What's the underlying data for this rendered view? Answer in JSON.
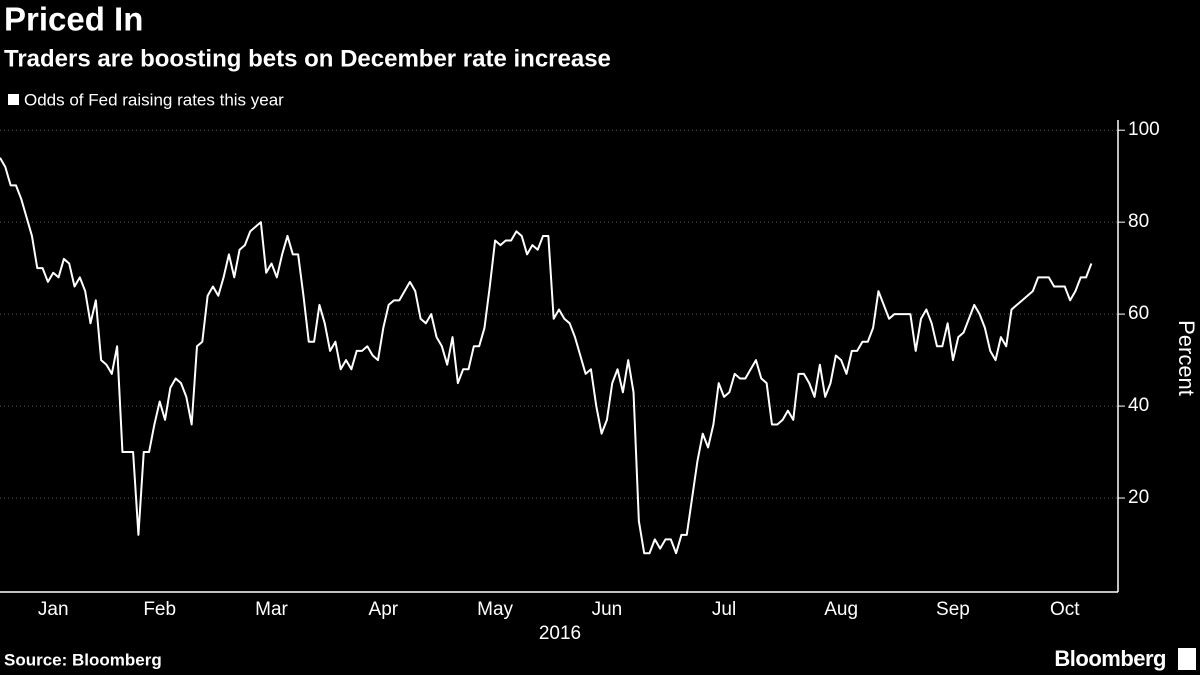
{
  "chart_data": {
    "type": "line",
    "title": "Priced In",
    "subtitle": "Traders are boosting bets on December rate increase",
    "y_label": "Percent",
    "x_label": "2016",
    "source": "Source: Bloomberg",
    "logo": "Bloomberg",
    "ylim": [
      0,
      102
    ],
    "yticks": [
      20,
      40,
      60,
      80,
      100
    ],
    "xlim": [
      0,
      210
    ],
    "xticks": [
      {
        "value": 10,
        "label": "Jan"
      },
      {
        "value": 30,
        "label": "Feb"
      },
      {
        "value": 51,
        "label": "Mar"
      },
      {
        "value": 72,
        "label": "Apr"
      },
      {
        "value": 93,
        "label": "May"
      },
      {
        "value": 114,
        "label": "Jun"
      },
      {
        "value": 136,
        "label": "Jul"
      },
      {
        "value": 158,
        "label": "Aug"
      },
      {
        "value": 179,
        "label": "Sep"
      },
      {
        "value": 200,
        "label": "Oct"
      }
    ],
    "grid": true,
    "series": [
      {
        "name": "Odds of Fed raising rates this year",
        "color": "#ffffff",
        "values": [
          94,
          92,
          88,
          88,
          85,
          81,
          77,
          70,
          70,
          67,
          69,
          68,
          72,
          71,
          66,
          68,
          65,
          58,
          63,
          50,
          49,
          47,
          53,
          30,
          30,
          30,
          12,
          30,
          30,
          36,
          41,
          37,
          44,
          46,
          45,
          42,
          36,
          53,
          54,
          64,
          66,
          64,
          68,
          73,
          68,
          74,
          75,
          78,
          79,
          80,
          69,
          71,
          68,
          73,
          77,
          73,
          73,
          64,
          54,
          54,
          62,
          58,
          52,
          54,
          48,
          50,
          48,
          52,
          52,
          53,
          51,
          50,
          57,
          62,
          63,
          63,
          65,
          67,
          65,
          59,
          58,
          60,
          55,
          53,
          49,
          55,
          45,
          48,
          48,
          53,
          53,
          57,
          66,
          76,
          75,
          76,
          76,
          78,
          77,
          73,
          75,
          74,
          77,
          77,
          59,
          61,
          59,
          58,
          55,
          51,
          47,
          48,
          40,
          34,
          37,
          45,
          48,
          43,
          50,
          43,
          15,
          8,
          8,
          11,
          9,
          11,
          11,
          8,
          12,
          12,
          20,
          28,
          34,
          31,
          36,
          45,
          42,
          43,
          47,
          46,
          46,
          48,
          50,
          46,
          45,
          36,
          36,
          37,
          39,
          37,
          47,
          47,
          45,
          42,
          49,
          42,
          45,
          51,
          50,
          47,
          52,
          52,
          54,
          54,
          57,
          65,
          62,
          59,
          60,
          60,
          60,
          60,
          52,
          59,
          61,
          58,
          53,
          53,
          58,
          50,
          55,
          56,
          59,
          62,
          60,
          57,
          52,
          50,
          55,
          53,
          61,
          62,
          63,
          64,
          65,
          68,
          68,
          68,
          66,
          66,
          66,
          63,
          65,
          68,
          68,
          71
        ]
      }
    ]
  }
}
